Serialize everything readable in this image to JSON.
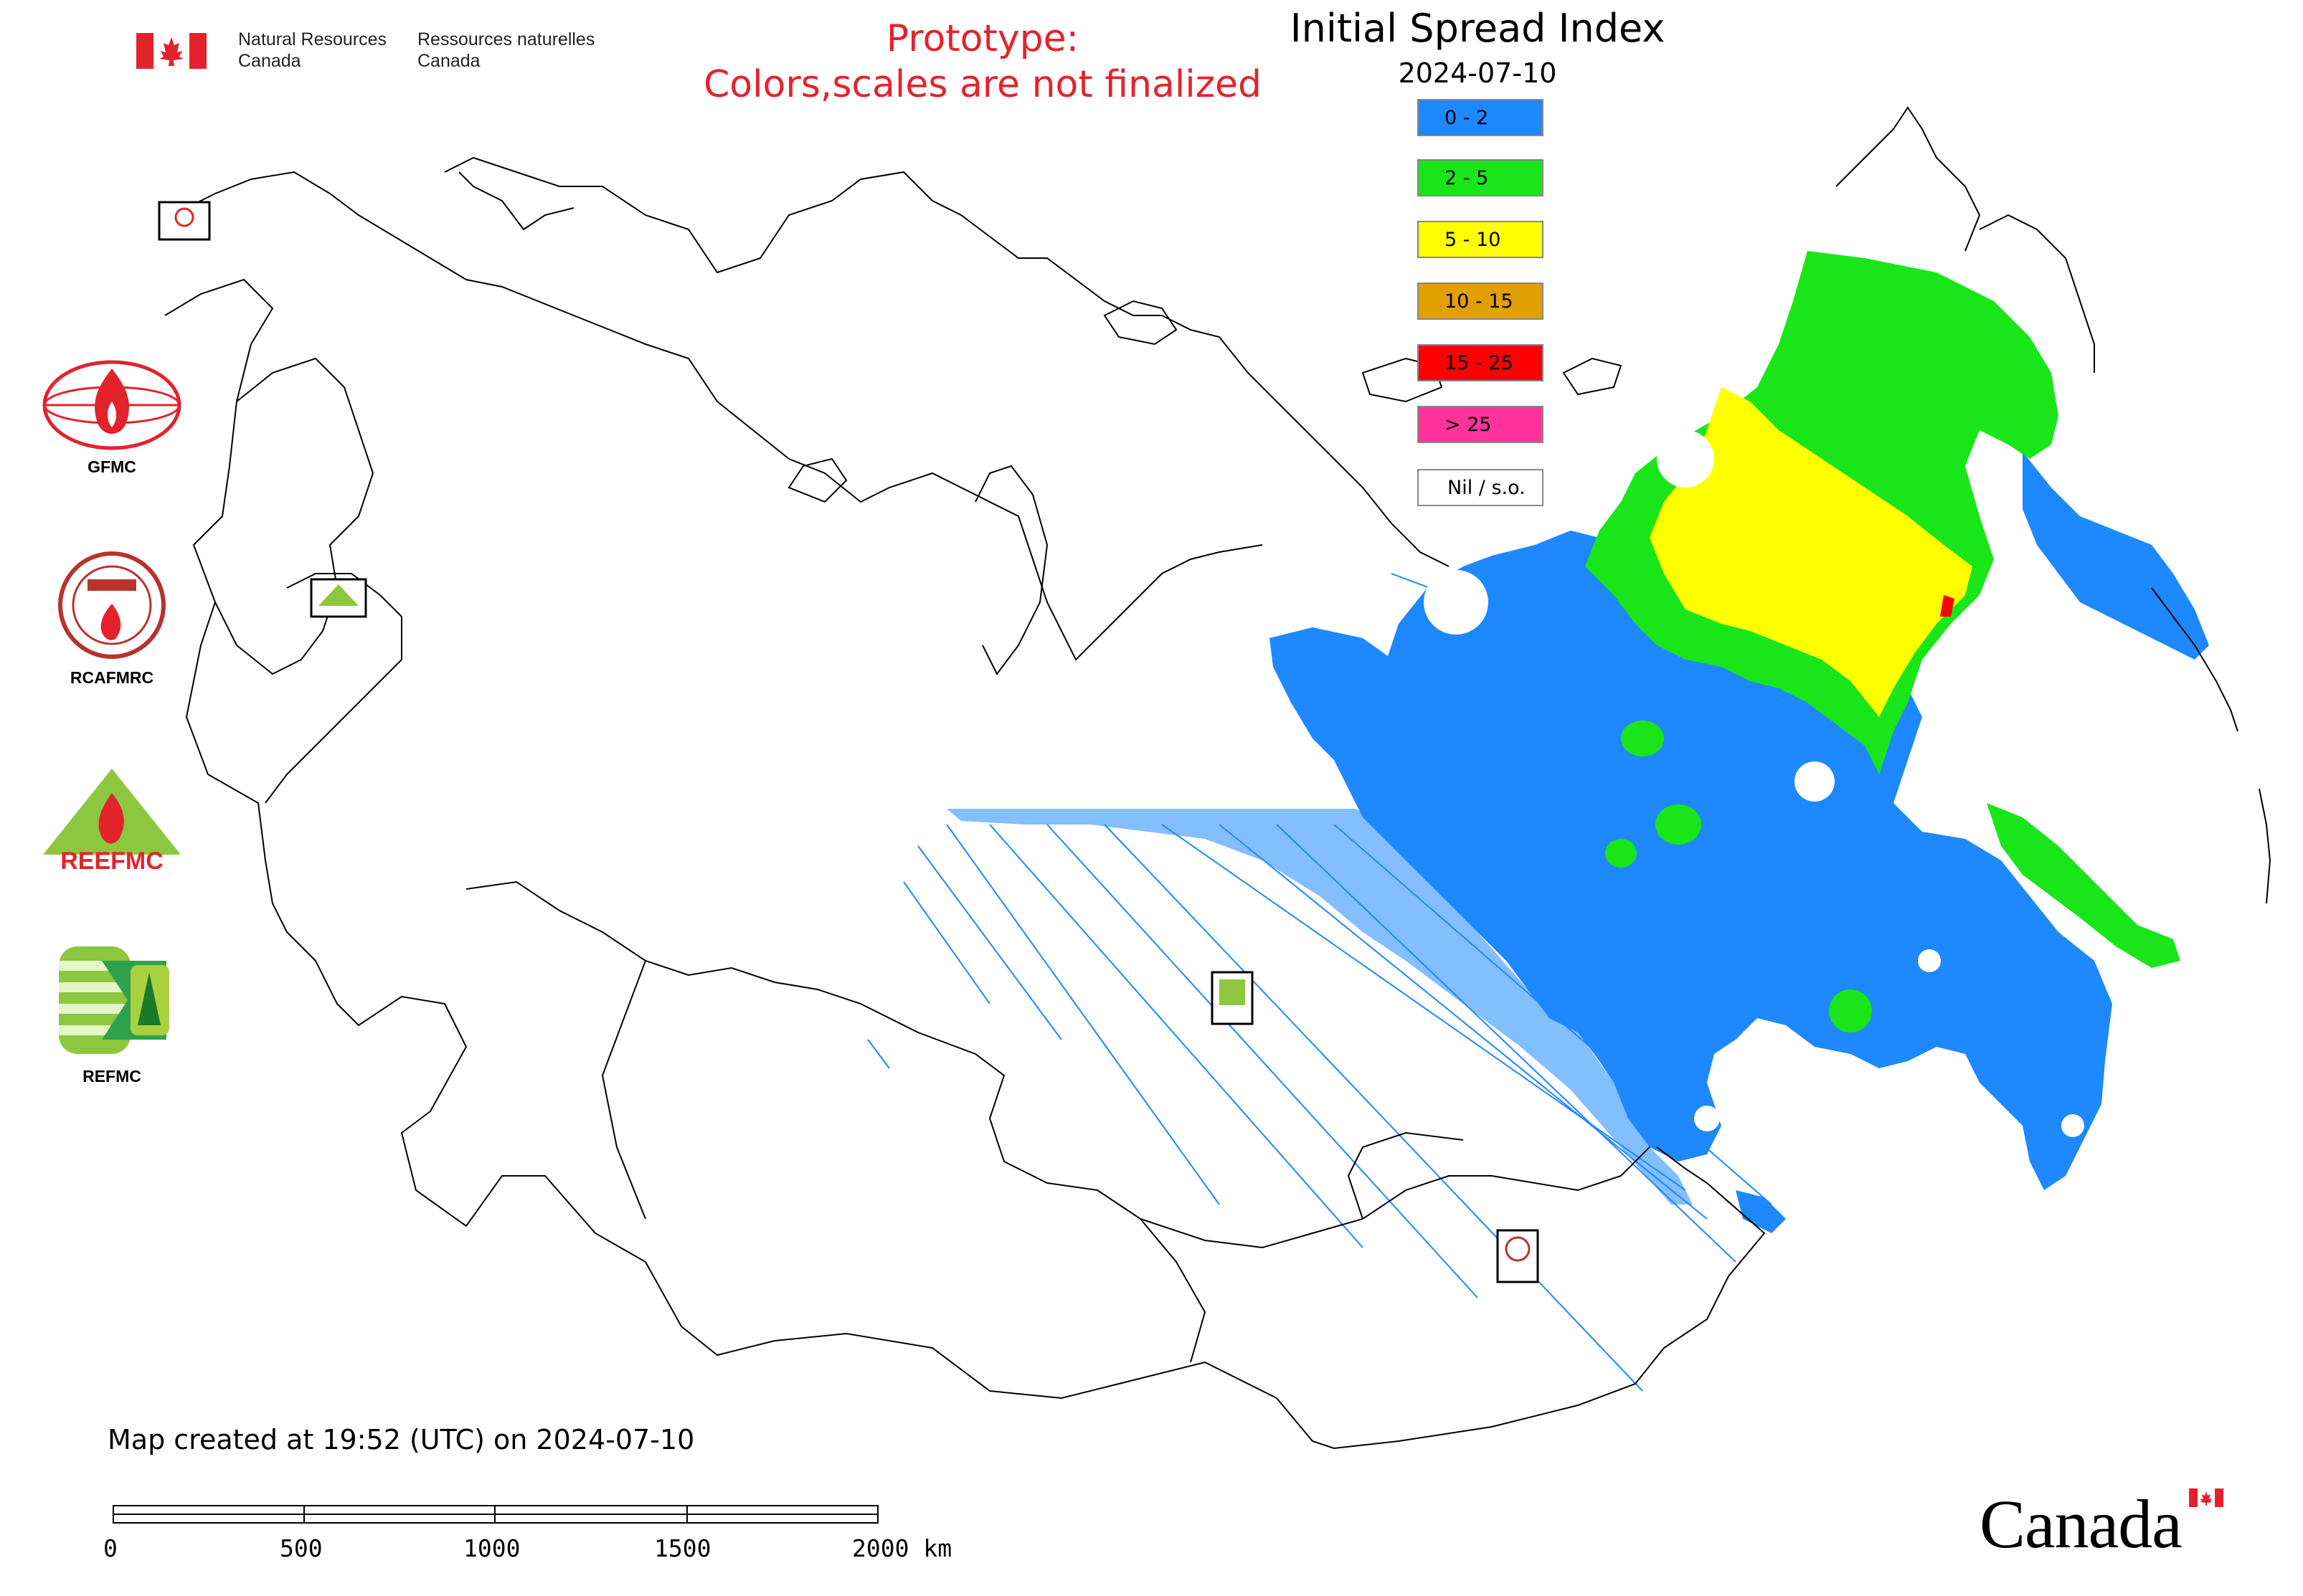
{
  "header": {
    "nrcan_en_line1": "Natural Resources",
    "nrcan_en_line2": "Canada",
    "nrcan_fr_line1": "Ressources naturelles",
    "nrcan_fr_line2": "Canada",
    "prototype_line1": "Prototype:",
    "prototype_line2": "Colors,scales are not finalized"
  },
  "legend": {
    "title": "Initial Spread Index",
    "date": "2024-07-10",
    "classes": [
      {
        "label": "0 - 2",
        "color": "#1e88ff"
      },
      {
        "label": "2 - 5",
        "color": "#19e619"
      },
      {
        "label": "5 - 10",
        "color": "#ffff00"
      },
      {
        "label": "10 - 15",
        "color": "#e0a000"
      },
      {
        "label": "15 - 25",
        "color": "#ff0000"
      },
      {
        "label": "> 25",
        "color": "#ff3399"
      },
      {
        "label": "Nil / s.o.",
        "color": "#ffffff"
      }
    ]
  },
  "logos": {
    "gfmc": "GFMC",
    "rcafmrc": "RCAFMRC",
    "reefmc": "REEFMC",
    "refmc": "REFMC",
    "rcafmrc_small": "RCAFMRC",
    "reefmc_small": "REEFMC",
    "refmc_small": "REFMC",
    "gfmc_small": "GFMC"
  },
  "footer": {
    "created": "Map created at 19:52 (UTC) on 2024-07-10",
    "scale_labels": [
      "0",
      "500",
      "1000",
      "1500",
      "2000 km"
    ],
    "wordmark": "Canada"
  },
  "colors": {
    "blue": "#1e88ff",
    "green": "#19e619",
    "yellow": "#ffff00",
    "orange": "#e0a000",
    "red": "#ff0000",
    "pink": "#ff3399",
    "flag_red": "#e3232c"
  }
}
